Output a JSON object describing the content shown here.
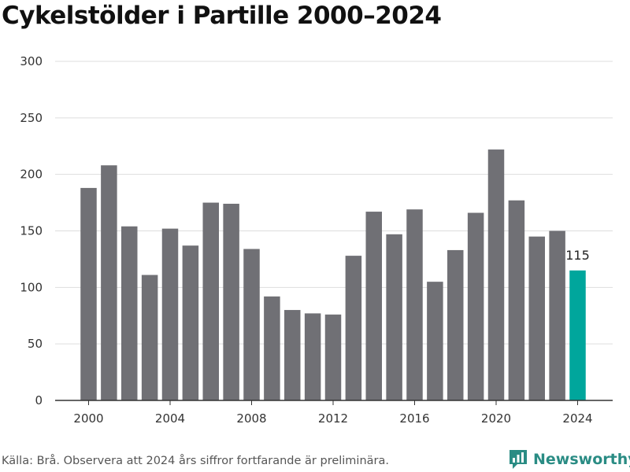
{
  "header": {
    "title": "Cykelstölder i Partille 2000–2024"
  },
  "footer": {
    "source": "Källa: Brå. Observera att 2024 års siffror fortfarande är preliminära.",
    "brand": "Newsworthy"
  },
  "colors": {
    "bar": "#707075",
    "highlight": "#00a69c",
    "grid": "#dddddd",
    "axis": "#333333",
    "brand": "#2a8c84"
  },
  "chart_data": {
    "type": "bar",
    "title": "Cykelstölder i Partille 2000–2024",
    "xlabel": "",
    "ylabel": "",
    "categories": [
      2000,
      2001,
      2002,
      2003,
      2004,
      2005,
      2006,
      2007,
      2008,
      2009,
      2010,
      2011,
      2012,
      2013,
      2014,
      2015,
      2016,
      2017,
      2018,
      2019,
      2020,
      2021,
      2022,
      2023,
      2024
    ],
    "values": [
      188,
      208,
      154,
      111,
      152,
      137,
      175,
      174,
      134,
      92,
      80,
      77,
      76,
      128,
      167,
      147,
      169,
      105,
      133,
      166,
      222,
      177,
      145,
      150,
      115
    ],
    "highlight_index": 24,
    "data_labels": [
      {
        "index": 24,
        "text": "115"
      }
    ],
    "ylim": [
      0,
      300
    ],
    "yticks": [
      0,
      50,
      100,
      150,
      200,
      250,
      300
    ],
    "xticks": [
      2000,
      2004,
      2008,
      2012,
      2016,
      2020,
      2024
    ],
    "grid": true,
    "legend": "none"
  }
}
